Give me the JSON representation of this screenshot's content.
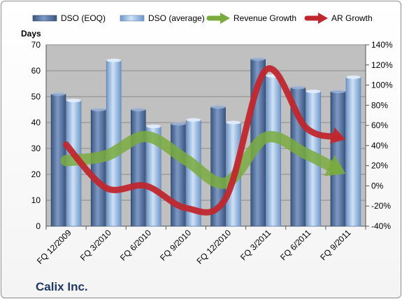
{
  "company": "Calix Inc.",
  "colors": {
    "dso_eoq": "#4f6d99",
    "dso_average": "#9dc0e6",
    "revenue_growth": "#7aab3e",
    "ar_growth": "#c0272d",
    "plot_background": "#c0c0c0",
    "text": "#1f3864"
  },
  "chart_data": {
    "type": "bar",
    "title": "",
    "categories": [
      "FQ 12/2009",
      "FQ 3/2010",
      "FQ 6/2010",
      "FQ 9/2010",
      "FQ 12/2010",
      "FQ 3/2011",
      "FQ 6/2011",
      "FQ 9/2011"
    ],
    "left_axis": {
      "label": "Days",
      "range": [
        0,
        70
      ],
      "ticks": [
        "0",
        "10",
        "20",
        "30",
        "40",
        "50",
        "60",
        "70"
      ]
    },
    "right_axis": {
      "label": "",
      "range": [
        -40,
        140
      ],
      "ticks": [
        "-40%",
        "-20%",
        "0%",
        "20%",
        "40%",
        "60%",
        "80%",
        "100%",
        "120%",
        "140%"
      ]
    },
    "grid": true,
    "legend_position": "top",
    "series": [
      {
        "name": "DSO (EOQ)",
        "type": "bar",
        "axis": "left",
        "values": [
          51,
          45,
          45,
          39.5,
          46,
          64.5,
          53.5,
          52
        ]
      },
      {
        "name": "DSO (average)",
        "type": "bar",
        "axis": "left",
        "values": [
          48.5,
          64,
          38.5,
          41,
          40,
          58,
          52,
          57.5
        ]
      },
      {
        "name": "Revenue Growth",
        "type": "arrow",
        "axis": "right",
        "values": [
          25,
          30,
          49,
          26,
          3,
          48,
          32,
          12
        ]
      },
      {
        "name": "AR Growth",
        "type": "arrow",
        "axis": "right",
        "values": [
          41,
          -2,
          0,
          -22,
          -12,
          115,
          58,
          46
        ]
      }
    ]
  }
}
